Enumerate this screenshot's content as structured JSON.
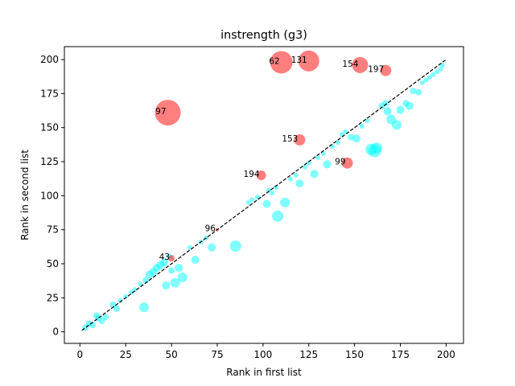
{
  "chart_data": {
    "type": "scatter",
    "title": "instrength (g3)",
    "xlabel": "Rank in first list",
    "ylabel": "Rank in second list",
    "xlim": [
      -8.5,
      209.5
    ],
    "ylim": [
      -8.5,
      209.5
    ],
    "xticks": [
      0,
      25,
      50,
      75,
      100,
      125,
      150,
      175,
      200
    ],
    "yticks": [
      0,
      25,
      50,
      75,
      100,
      125,
      150,
      175,
      200
    ],
    "reference_line": {
      "from": [
        1,
        1
      ],
      "to": [
        200,
        200
      ],
      "style": "dashed",
      "color": "#000000"
    },
    "colors": {
      "regular": "#00ffff",
      "highlighted": "#ff0000"
    },
    "series": [
      {
        "points": [
          {
            "x": 3,
            "y": 3,
            "s": 4
          },
          {
            "x": 5,
            "y": 6,
            "s": 4
          },
          {
            "x": 7,
            "y": 5,
            "s": 4
          },
          {
            "x": 9,
            "y": 12,
            "s": 4
          },
          {
            "x": 10,
            "y": 10,
            "s": 4
          },
          {
            "x": 12,
            "y": 8,
            "s": 4
          },
          {
            "x": 14,
            "y": 11,
            "s": 4
          },
          {
            "x": 18,
            "y": 20,
            "s": 4
          },
          {
            "x": 20,
            "y": 17,
            "s": 4
          },
          {
            "x": 22,
            "y": 23,
            "s": 3
          },
          {
            "x": 25,
            "y": 26,
            "s": 3
          },
          {
            "x": 28,
            "y": 29,
            "s": 3
          },
          {
            "x": 30,
            "y": 31,
            "s": 3
          },
          {
            "x": 33,
            "y": 35,
            "s": 3
          },
          {
            "x": 35,
            "y": 18,
            "s": 6
          },
          {
            "x": 36,
            "y": 38,
            "s": 4
          },
          {
            "x": 38,
            "y": 42,
            "s": 5
          },
          {
            "x": 40,
            "y": 44,
            "s": 5
          },
          {
            "x": 42,
            "y": 47,
            "s": 5
          },
          {
            "x": 44,
            "y": 49,
            "s": 5
          },
          {
            "x": 46,
            "y": 51,
            "s": 5
          },
          {
            "x": 47,
            "y": 34,
            "s": 5
          },
          {
            "x": 49,
            "y": 55,
            "s": 4
          },
          {
            "x": 50,
            "y": 45,
            "s": 4
          },
          {
            "x": 52,
            "y": 36,
            "s": 6
          },
          {
            "x": 54,
            "y": 47,
            "s": 5
          },
          {
            "x": 56,
            "y": 40,
            "s": 6
          },
          {
            "x": 60,
            "y": 62,
            "s": 3
          },
          {
            "x": 63,
            "y": 53,
            "s": 5
          },
          {
            "x": 66,
            "y": 66,
            "s": 3
          },
          {
            "x": 69,
            "y": 69,
            "s": 3
          },
          {
            "x": 72,
            "y": 62,
            "s": 5
          },
          {
            "x": 85,
            "y": 63,
            "s": 7
          },
          {
            "x": 92,
            "y": 95,
            "s": 3
          },
          {
            "x": 94,
            "y": 97,
            "s": 3
          },
          {
            "x": 97,
            "y": 99,
            "s": 3
          },
          {
            "x": 102,
            "y": 94,
            "s": 5
          },
          {
            "x": 103,
            "y": 104,
            "s": 3
          },
          {
            "x": 105,
            "y": 102,
            "s": 3
          },
          {
            "x": 107,
            "y": 106,
            "s": 3
          },
          {
            "x": 108,
            "y": 85,
            "s": 7
          },
          {
            "x": 112,
            "y": 95,
            "s": 6
          },
          {
            "x": 115,
            "y": 112,
            "s": 3
          },
          {
            "x": 118,
            "y": 115,
            "s": 3
          },
          {
            "x": 120,
            "y": 109,
            "s": 5
          },
          {
            "x": 123,
            "y": 121,
            "s": 3
          },
          {
            "x": 125,
            "y": 124,
            "s": 3
          },
          {
            "x": 128,
            "y": 116,
            "s": 5
          },
          {
            "x": 130,
            "y": 128,
            "s": 3
          },
          {
            "x": 133,
            "y": 131,
            "s": 3
          },
          {
            "x": 135,
            "y": 123,
            "s": 5
          },
          {
            "x": 138,
            "y": 136,
            "s": 3
          },
          {
            "x": 141,
            "y": 139,
            "s": 3
          },
          {
            "x": 143,
            "y": 145,
            "s": 3
          },
          {
            "x": 145,
            "y": 147,
            "s": 3
          },
          {
            "x": 148,
            "y": 143,
            "s": 4
          },
          {
            "x": 151,
            "y": 142,
            "s": 5
          },
          {
            "x": 154,
            "y": 151,
            "s": 3
          },
          {
            "x": 157,
            "y": 155,
            "s": 3
          },
          {
            "x": 159,
            "y": 134,
            "s": 7
          },
          {
            "x": 161,
            "y": 133,
            "s": 8
          },
          {
            "x": 162,
            "y": 135,
            "s": 7
          },
          {
            "x": 165,
            "y": 166,
            "s": 4
          },
          {
            "x": 167,
            "y": 168,
            "s": 4
          },
          {
            "x": 168,
            "y": 162,
            "s": 5
          },
          {
            "x": 170,
            "y": 156,
            "s": 6
          },
          {
            "x": 173,
            "y": 152,
            "s": 6
          },
          {
            "x": 175,
            "y": 163,
            "s": 5
          },
          {
            "x": 178,
            "y": 168,
            "s": 4
          },
          {
            "x": 180,
            "y": 166,
            "s": 5
          },
          {
            "x": 182,
            "y": 177,
            "s": 4
          },
          {
            "x": 185,
            "y": 176,
            "s": 4
          },
          {
            "x": 187,
            "y": 183,
            "s": 3
          },
          {
            "x": 189,
            "y": 185,
            "s": 3
          },
          {
            "x": 191,
            "y": 187,
            "s": 3
          },
          {
            "x": 193,
            "y": 189,
            "s": 3
          },
          {
            "x": 195,
            "y": 191,
            "s": 3
          },
          {
            "x": 197,
            "y": 193,
            "s": 3
          },
          {
            "x": 198,
            "y": 196,
            "s": 3
          }
        ]
      },
      {
        "points": [
          {
            "x": 48,
            "y": 161,
            "s": 16,
            "label": "97"
          },
          {
            "x": 110,
            "y": 198,
            "s": 14,
            "label": "62"
          },
          {
            "x": 125,
            "y": 199,
            "s": 13,
            "label": "131"
          },
          {
            "x": 153,
            "y": 196,
            "s": 10,
            "label": "154"
          },
          {
            "x": 167,
            "y": 192,
            "s": 7,
            "label": "197"
          },
          {
            "x": 120,
            "y": 141,
            "s": 7,
            "label": "153"
          },
          {
            "x": 146,
            "y": 124,
            "s": 7,
            "label": "99"
          },
          {
            "x": 99,
            "y": 115,
            "s": 6,
            "label": "194"
          },
          {
            "x": 50,
            "y": 54,
            "s": 4,
            "label": "43"
          },
          {
            "x": 75,
            "y": 75,
            "s": 2,
            "label": "96"
          }
        ]
      }
    ]
  }
}
